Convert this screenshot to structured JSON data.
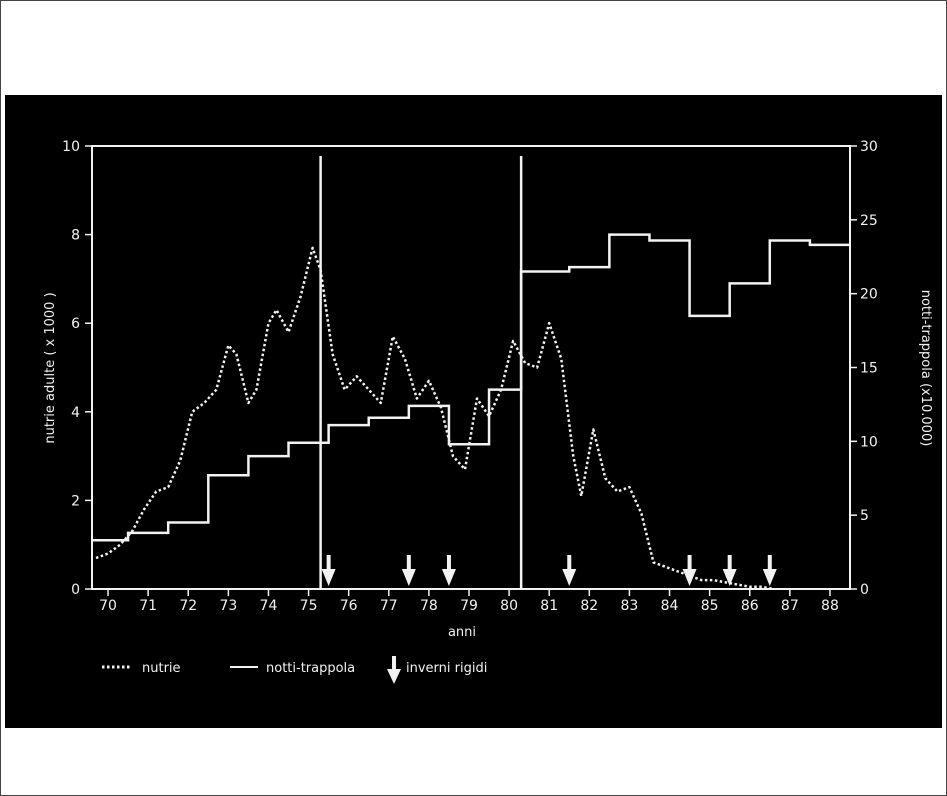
{
  "chart_data": {
    "type": "line",
    "xlabel": "anni",
    "ylabel_left": "nutrie adulte ( x 1000 )",
    "ylabel_right": "notti-trappola (x10.000)",
    "x_ticks": [
      "70",
      "71",
      "72",
      "73",
      "74",
      "75",
      "76",
      "77",
      "78",
      "79",
      "80",
      "81",
      "82",
      "83",
      "84",
      "85",
      "86",
      "87",
      "88"
    ],
    "y_left_ticks": [
      "0",
      "2",
      "4",
      "6",
      "8",
      "10"
    ],
    "y_right_ticks": [
      "0",
      "5",
      "10",
      "15",
      "20",
      "25",
      "30"
    ],
    "y_left_lim": [
      0,
      10
    ],
    "y_right_lim": [
      0,
      30
    ],
    "x_lim": [
      69.6,
      88.5
    ],
    "series": [
      {
        "name": "nutrie",
        "style": "dotted",
        "axis": "left",
        "x": [
          69.7,
          70.0,
          70.3,
          70.6,
          70.9,
          71.2,
          71.5,
          71.8,
          72.1,
          72.4,
          72.7,
          73.0,
          73.2,
          73.5,
          73.7,
          74.0,
          74.2,
          74.5,
          74.8,
          75.1,
          75.3,
          75.6,
          75.9,
          76.2,
          76.5,
          76.8,
          77.1,
          77.4,
          77.7,
          78.0,
          78.3,
          78.6,
          78.9,
          79.2,
          79.5,
          79.8,
          80.1,
          80.4,
          80.7,
          81.0,
          81.3,
          81.6,
          81.8,
          82.1,
          82.4,
          82.7,
          83.0,
          83.3,
          83.6,
          83.9,
          84.2,
          84.5,
          84.8,
          85.1,
          85.4,
          85.7,
          86.0,
          86.3,
          86.6
        ],
        "y": [
          0.7,
          0.8,
          1.0,
          1.3,
          1.8,
          2.2,
          2.3,
          2.9,
          4.0,
          4.2,
          4.5,
          5.5,
          5.3,
          4.2,
          4.5,
          6.0,
          6.3,
          5.8,
          6.6,
          7.7,
          7.2,
          5.3,
          4.5,
          4.8,
          4.5,
          4.2,
          5.7,
          5.2,
          4.3,
          4.7,
          4.1,
          3.0,
          2.7,
          4.3,
          3.9,
          4.5,
          5.6,
          5.1,
          5.0,
          6.0,
          5.2,
          3.0,
          2.1,
          3.6,
          2.5,
          2.2,
          2.3,
          1.7,
          0.6,
          0.5,
          0.4,
          0.3,
          0.2,
          0.2,
          0.15,
          0.1,
          0.05,
          0.05,
          0.0
        ]
      },
      {
        "name": "notti-trappola",
        "style": "step",
        "axis": "right",
        "steps": [
          {
            "x0": 69.6,
            "x1": 70.5,
            "y": 3.3
          },
          {
            "x0": 70.5,
            "x1": 71.5,
            "y": 3.8
          },
          {
            "x0": 71.5,
            "x1": 72.5,
            "y": 4.5
          },
          {
            "x0": 72.5,
            "x1": 73.5,
            "y": 7.7
          },
          {
            "x0": 73.5,
            "x1": 74.5,
            "y": 9.0
          },
          {
            "x0": 74.5,
            "x1": 75.5,
            "y": 9.9
          },
          {
            "x0": 75.5,
            "x1": 76.5,
            "y": 11.1
          },
          {
            "x0": 76.5,
            "x1": 77.5,
            "y": 11.6
          },
          {
            "x0": 77.5,
            "x1": 78.5,
            "y": 12.4
          },
          {
            "x0": 78.5,
            "x1": 79.5,
            "y": 9.8
          },
          {
            "x0": 79.5,
            "x1": 80.3,
            "y": 13.5
          },
          {
            "x0": 80.3,
            "x1": 81.5,
            "y": 21.5
          },
          {
            "x0": 81.5,
            "x1": 82.5,
            "y": 21.8
          },
          {
            "x0": 82.5,
            "x1": 83.5,
            "y": 24.0
          },
          {
            "x0": 83.5,
            "x1": 84.5,
            "y": 23.6
          },
          {
            "x0": 84.5,
            "x1": 85.5,
            "y": 18.5
          },
          {
            "x0": 85.5,
            "x1": 86.5,
            "y": 20.7
          },
          {
            "x0": 86.5,
            "x1": 87.5,
            "y": 23.6
          },
          {
            "x0": 87.5,
            "x1": 88.5,
            "y": 23.3
          }
        ]
      }
    ],
    "vertical_markers_x": [
      75.3,
      80.3
    ],
    "harsh_winters_x": [
      75.5,
      77.5,
      78.5,
      81.5,
      84.5,
      85.5,
      86.5
    ],
    "legend": {
      "placement": "bottom-left",
      "nutrie": "nutrie",
      "notti_trappola": "notti-trappola",
      "inverni_rigidi": "inverni rigidi"
    },
    "colors": {
      "background": "#000000",
      "foreground": "#f2f2f2"
    }
  }
}
